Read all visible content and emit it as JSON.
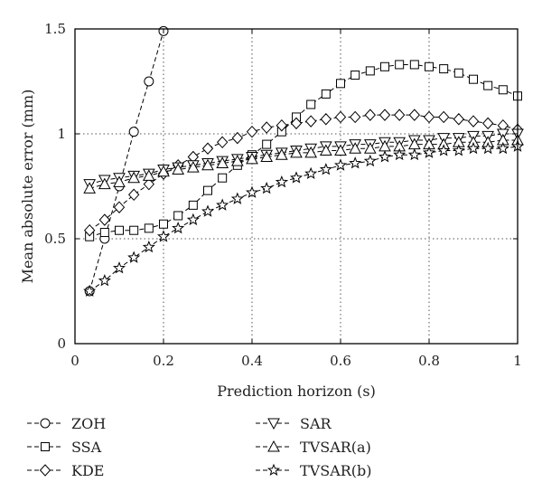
{
  "chart_data": {
    "type": "line",
    "title": "",
    "xlabel": "Prediction horizon (s)",
    "ylabel": "Mean absolute error (mm)",
    "xlim": [
      0,
      1
    ],
    "ylim": [
      0,
      1.5
    ],
    "xticks": [
      0,
      0.2,
      0.4,
      0.6,
      0.8,
      1
    ],
    "xtick_labels": [
      "0",
      "0.2",
      "0.4",
      "0.6",
      "0.8",
      "1"
    ],
    "yticks": [
      0,
      0.5,
      1,
      1.5
    ],
    "ytick_labels": [
      "0",
      "0.5",
      "1",
      "1.5"
    ],
    "grid": "dotted",
    "legend_position": "bottom",
    "series": [
      {
        "name": "ZOH",
        "marker": "circle",
        "x": [
          0.033,
          0.067,
          0.1,
          0.133,
          0.167,
          0.2
        ],
        "values": [
          0.25,
          0.5,
          0.75,
          1.01,
          1.25,
          1.49
        ]
      },
      {
        "name": "SSA",
        "marker": "square",
        "x": [
          0.033,
          0.067,
          0.1,
          0.133,
          0.167,
          0.2,
          0.233,
          0.267,
          0.3,
          0.333,
          0.367,
          0.4,
          0.433,
          0.467,
          0.5,
          0.533,
          0.567,
          0.6,
          0.633,
          0.667,
          0.7,
          0.733,
          0.767,
          0.8,
          0.833,
          0.867,
          0.9,
          0.933,
          0.967,
          1.0
        ],
        "values": [
          0.51,
          0.53,
          0.54,
          0.54,
          0.55,
          0.57,
          0.61,
          0.66,
          0.73,
          0.79,
          0.85,
          0.9,
          0.95,
          1.01,
          1.08,
          1.14,
          1.19,
          1.24,
          1.28,
          1.3,
          1.32,
          1.33,
          1.33,
          1.32,
          1.31,
          1.29,
          1.26,
          1.23,
          1.21,
          1.18
        ]
      },
      {
        "name": "KDE",
        "marker": "diamond",
        "x": [
          0.033,
          0.067,
          0.1,
          0.133,
          0.167,
          0.2,
          0.233,
          0.267,
          0.3,
          0.333,
          0.367,
          0.4,
          0.433,
          0.467,
          0.5,
          0.533,
          0.567,
          0.6,
          0.633,
          0.667,
          0.7,
          0.733,
          0.767,
          0.8,
          0.833,
          0.867,
          0.9,
          0.933,
          0.967,
          1.0
        ],
        "values": [
          0.54,
          0.59,
          0.65,
          0.71,
          0.76,
          0.81,
          0.85,
          0.89,
          0.93,
          0.96,
          0.98,
          1.01,
          1.03,
          1.04,
          1.05,
          1.06,
          1.07,
          1.08,
          1.08,
          1.09,
          1.09,
          1.09,
          1.09,
          1.08,
          1.08,
          1.07,
          1.06,
          1.05,
          1.04,
          1.02
        ]
      },
      {
        "name": "SAR",
        "marker": "triangle-down",
        "x": [
          0.033,
          0.067,
          0.1,
          0.133,
          0.167,
          0.2,
          0.233,
          0.267,
          0.3,
          0.333,
          0.367,
          0.4,
          0.433,
          0.467,
          0.5,
          0.533,
          0.567,
          0.6,
          0.633,
          0.667,
          0.7,
          0.733,
          0.767,
          0.8,
          0.833,
          0.867,
          0.9,
          0.933,
          0.967,
          1.0
        ],
        "values": [
          0.76,
          0.78,
          0.79,
          0.8,
          0.81,
          0.83,
          0.84,
          0.85,
          0.86,
          0.87,
          0.88,
          0.89,
          0.9,
          0.91,
          0.92,
          0.93,
          0.94,
          0.94,
          0.95,
          0.95,
          0.96,
          0.96,
          0.97,
          0.97,
          0.98,
          0.98,
          0.99,
          0.99,
          1.0,
          1.0
        ]
      },
      {
        "name": "TVSAR(a)",
        "marker": "triangle-up",
        "x": [
          0.033,
          0.067,
          0.1,
          0.133,
          0.167,
          0.2,
          0.233,
          0.267,
          0.3,
          0.333,
          0.367,
          0.4,
          0.433,
          0.467,
          0.5,
          0.533,
          0.567,
          0.6,
          0.633,
          0.667,
          0.7,
          0.733,
          0.767,
          0.8,
          0.833,
          0.867,
          0.9,
          0.933,
          0.967,
          1.0
        ],
        "values": [
          0.74,
          0.76,
          0.77,
          0.79,
          0.8,
          0.82,
          0.83,
          0.84,
          0.85,
          0.86,
          0.87,
          0.88,
          0.89,
          0.9,
          0.91,
          0.91,
          0.92,
          0.92,
          0.93,
          0.93,
          0.94,
          0.94,
          0.95,
          0.95,
          0.95,
          0.96,
          0.96,
          0.96,
          0.97,
          0.97
        ]
      },
      {
        "name": "TVSAR(b)",
        "marker": "star",
        "x": [
          0.033,
          0.067,
          0.1,
          0.133,
          0.167,
          0.2,
          0.233,
          0.267,
          0.3,
          0.333,
          0.367,
          0.4,
          0.433,
          0.467,
          0.5,
          0.533,
          0.567,
          0.6,
          0.633,
          0.667,
          0.7,
          0.733,
          0.767,
          0.8,
          0.833,
          0.867,
          0.9,
          0.933,
          0.967,
          1.0
        ],
        "values": [
          0.25,
          0.3,
          0.36,
          0.41,
          0.46,
          0.51,
          0.55,
          0.59,
          0.63,
          0.66,
          0.69,
          0.72,
          0.74,
          0.77,
          0.79,
          0.81,
          0.83,
          0.85,
          0.86,
          0.87,
          0.89,
          0.9,
          0.9,
          0.91,
          0.92,
          0.92,
          0.93,
          0.93,
          0.93,
          0.94
        ]
      }
    ]
  }
}
